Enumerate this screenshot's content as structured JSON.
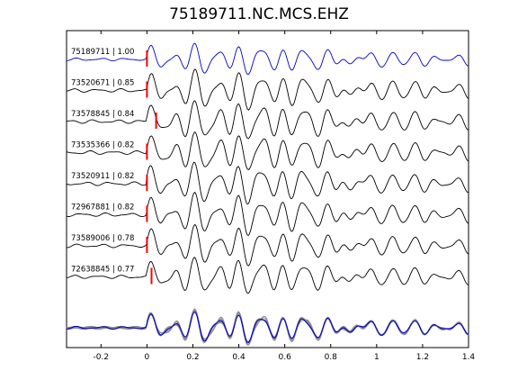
{
  "chart_data": {
    "type": "line",
    "title": "75189711.NC.MCS.EHZ",
    "xlabel": "",
    "ylabel": "",
    "xlim": [
      -0.35,
      1.4
    ],
    "x_ticks": [
      -0.2,
      0,
      0.2,
      0.4,
      0.6,
      0.8,
      1,
      1.2,
      1.4
    ],
    "x_tick_labels": [
      "-0.2",
      "0",
      "0.2",
      "0.4",
      "0.6",
      "0.8",
      "1",
      "1.2",
      "1.4"
    ],
    "grid": false,
    "traces": [
      {
        "label": "75189711 | 1.00",
        "pick_time": 0.0,
        "color": "#0000cc",
        "seed": 1,
        "amp": 1.0
      },
      {
        "label": "73520671 | 0.85",
        "pick_time": 0.0,
        "color": "#000000",
        "seed": 2,
        "amp": 1.25
      },
      {
        "label": "73578845 | 0.84",
        "pick_time": 0.04,
        "color": "#000000",
        "seed": 3,
        "amp": 1.3
      },
      {
        "label": "73535366 | 0.82",
        "pick_time": 0.0,
        "color": "#000000",
        "seed": 4,
        "amp": 1.3
      },
      {
        "label": "73520911 | 0.82",
        "pick_time": 0.0,
        "color": "#000000",
        "seed": 5,
        "amp": 1.3
      },
      {
        "label": "72967881 | 0.82",
        "pick_time": 0.0,
        "color": "#000000",
        "seed": 6,
        "amp": 1.3
      },
      {
        "label": "73589006 | 0.78",
        "pick_time": 0.0,
        "color": "#000000",
        "seed": 7,
        "amp": 1.25
      },
      {
        "label": "72638845 | 0.77",
        "pick_time": 0.02,
        "color": "#000000",
        "seed": 8,
        "amp": 1.2
      }
    ],
    "stack": {
      "overlay_color": "#8c8c8c",
      "reference_color": "#0000cc"
    },
    "pick_marker_color": "#ff0000"
  }
}
